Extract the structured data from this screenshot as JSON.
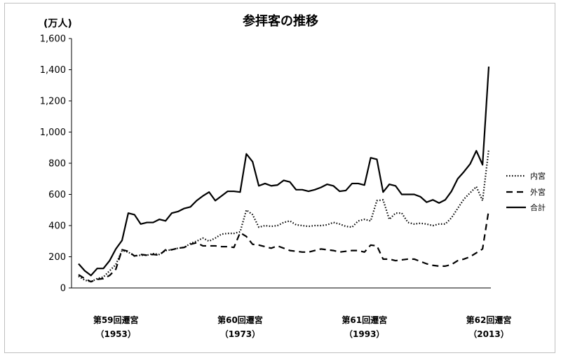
{
  "chart_data": {
    "type": "line",
    "title": "参拝客の推移",
    "ylabel": "(万人)",
    "ylim": [
      0,
      1600
    ],
    "y_ticks": [
      "0",
      "200",
      "400",
      "600",
      "800",
      "1,000",
      "1,200",
      "1,400",
      "1,600"
    ],
    "grid": false,
    "legend_position": "right",
    "x": [
      1947,
      1948,
      1949,
      1950,
      1951,
      1952,
      1953,
      1954,
      1955,
      1956,
      1957,
      1958,
      1959,
      1960,
      1961,
      1962,
      1963,
      1964,
      1965,
      1966,
      1967,
      1968,
      1969,
      1970,
      1971,
      1972,
      1973,
      1974,
      1975,
      1976,
      1977,
      1978,
      1979,
      1980,
      1981,
      1982,
      1983,
      1984,
      1985,
      1986,
      1987,
      1988,
      1989,
      1990,
      1991,
      1992,
      1993,
      1994,
      1995,
      1996,
      1997,
      1998,
      1999,
      2000,
      2001,
      2002,
      2003,
      2004,
      2005,
      2006,
      2007,
      2008,
      2009,
      2010,
      2011,
      2012,
      2013
    ],
    "category_labels": [
      {
        "x": 1953,
        "line1": "第59回遷宮",
        "line2": "（1953）"
      },
      {
        "x": 1973,
        "line1": "第60回遷宮",
        "line2": "（1973）"
      },
      {
        "x": 1993,
        "line1": "第61回遷宮",
        "line2": "（1993）"
      },
      {
        "x": 2013,
        "line1": "第62回遷宮",
        "line2": "（2013）"
      }
    ],
    "series": [
      {
        "name": "内宮",
        "style": "dotted",
        "color": "#000000",
        "values": [
          75,
          50,
          40,
          60,
          70,
          110,
          150,
          240,
          230,
          205,
          210,
          210,
          220,
          215,
          240,
          245,
          255,
          260,
          285,
          300,
          320,
          300,
          320,
          345,
          350,
          350,
          360,
          500,
          470,
          390,
          400,
          395,
          400,
          420,
          430,
          405,
          400,
          395,
          400,
          400,
          405,
          420,
          410,
          395,
          390,
          430,
          440,
          430,
          560,
          565,
          440,
          480,
          480,
          420,
          410,
          415,
          410,
          400,
          410,
          410,
          450,
          510,
          570,
          610,
          650,
          560,
          890
        ]
      },
      {
        "name": "外宮",
        "style": "dashed",
        "color": "#000000",
        "values": [
          85,
          60,
          40,
          55,
          60,
          80,
          120,
          245,
          235,
          205,
          215,
          210,
          215,
          210,
          245,
          245,
          255,
          260,
          280,
          290,
          270,
          270,
          270,
          265,
          265,
          260,
          355,
          330,
          280,
          275,
          265,
          255,
          270,
          255,
          240,
          235,
          230,
          230,
          240,
          250,
          245,
          240,
          230,
          235,
          240,
          240,
          230,
          275,
          270,
          185,
          185,
          175,
          180,
          185,
          185,
          170,
          155,
          145,
          140,
          140,
          150,
          175,
          185,
          200,
          225,
          250,
          500
        ]
      },
      {
        "name": "合計",
        "style": "solid",
        "color": "#000000",
        "values": [
          155,
          110,
          80,
          125,
          125,
          175,
          250,
          305,
          480,
          470,
          410,
          420,
          420,
          440,
          430,
          480,
          490,
          510,
          520,
          560,
          590,
          615,
          560,
          590,
          620,
          620,
          615,
          860,
          810,
          655,
          670,
          655,
          660,
          690,
          680,
          630,
          630,
          620,
          630,
          645,
          665,
          655,
          620,
          625,
          670,
          670,
          660,
          835,
          825,
          615,
          665,
          655,
          600,
          600,
          600,
          585,
          550,
          565,
          545,
          565,
          620,
          700,
          745,
          795,
          880,
          790,
          1420
        ]
      }
    ]
  }
}
